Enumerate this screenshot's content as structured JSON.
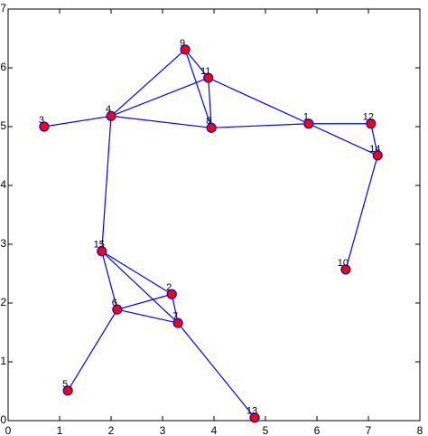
{
  "chart_data": {
    "type": "network",
    "nodes": [
      {
        "label": "1",
        "x": 5.84,
        "y": 5.05
      },
      {
        "label": "2",
        "x": 3.18,
        "y": 2.15
      },
      {
        "label": "3",
        "x": 0.7,
        "y": 5.0
      },
      {
        "label": "4",
        "x": 2.0,
        "y": 5.18
      },
      {
        "label": "5",
        "x": 1.16,
        "y": 0.51
      },
      {
        "label": "6",
        "x": 2.12,
        "y": 1.89
      },
      {
        "label": "7",
        "x": 3.3,
        "y": 1.66
      },
      {
        "label": "8",
        "x": 3.95,
        "y": 4.98
      },
      {
        "label": "9",
        "x": 3.44,
        "y": 6.31
      },
      {
        "label": "10",
        "x": 6.56,
        "y": 2.57
      },
      {
        "label": "11",
        "x": 3.89,
        "y": 5.83
      },
      {
        "label": "12",
        "x": 7.05,
        "y": 5.05
      },
      {
        "label": "13",
        "x": 4.79,
        "y": 0.05
      },
      {
        "label": "14",
        "x": 7.18,
        "y": 4.51
      },
      {
        "label": "15",
        "x": 1.82,
        "y": 2.88
      }
    ],
    "edges": [
      [
        2,
        3
      ],
      [
        3,
        8
      ],
      [
        3,
        10
      ],
      [
        3,
        7
      ],
      [
        3,
        14
      ],
      [
        8,
        10
      ],
      [
        8,
        7
      ],
      [
        10,
        7
      ],
      [
        10,
        0
      ],
      [
        7,
        0
      ],
      [
        0,
        11
      ],
      [
        0,
        13
      ],
      [
        11,
        13
      ],
      [
        13,
        9
      ],
      [
        14,
        1
      ],
      [
        14,
        5
      ],
      [
        14,
        6
      ],
      [
        1,
        5
      ],
      [
        1,
        6
      ],
      [
        5,
        6
      ],
      [
        5,
        4
      ],
      [
        6,
        12
      ]
    ],
    "edge_color": "#0000ff",
    "node_color": "#ff0000",
    "xlim": [
      0,
      8
    ],
    "ylim": [
      0,
      7
    ],
    "xticks": [
      0,
      1,
      2,
      3,
      4,
      5,
      6,
      7,
      8
    ],
    "yticks": [
      0,
      1,
      2,
      3,
      4,
      5,
      6,
      7
    ]
  }
}
